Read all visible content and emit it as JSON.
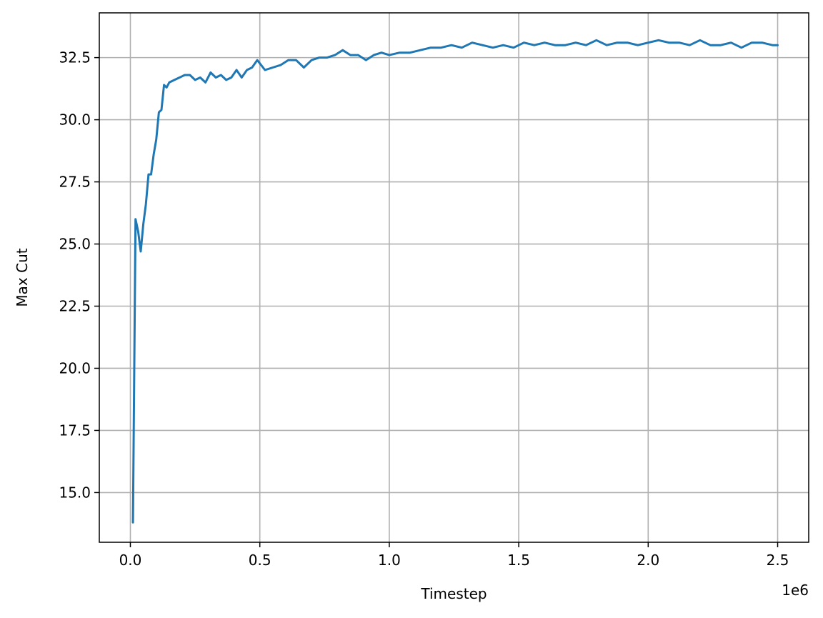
{
  "chart_data": {
    "type": "line",
    "title": "",
    "xlabel": "Timestep",
    "ylabel": "Max Cut",
    "x_offset_label": "1e6",
    "xlim": [
      -0.12,
      2.62
    ],
    "ylim": [
      13.0,
      34.3
    ],
    "xticks": [
      0.0,
      0.5,
      1.0,
      1.5,
      2.0,
      2.5
    ],
    "xtick_labels": [
      "0.0",
      "0.5",
      "1.0",
      "1.5",
      "2.0",
      "2.5"
    ],
    "yticks": [
      15.0,
      17.5,
      20.0,
      22.5,
      25.0,
      27.5,
      30.0,
      32.5
    ],
    "ytick_labels": [
      "15.0",
      "17.5",
      "20.0",
      "22.5",
      "25.0",
      "27.5",
      "30.0",
      "32.5"
    ],
    "grid": true,
    "line_color": "#1f77b4",
    "series": [
      {
        "x": [
          0.01,
          0.02,
          0.03,
          0.04,
          0.05,
          0.06,
          0.07,
          0.08,
          0.09,
          0.1,
          0.11,
          0.12,
          0.13,
          0.14,
          0.15,
          0.17,
          0.19,
          0.21,
          0.23,
          0.25,
          0.27,
          0.29,
          0.31,
          0.33,
          0.35,
          0.37,
          0.39,
          0.41,
          0.43,
          0.45,
          0.47,
          0.49,
          0.52,
          0.55,
          0.58,
          0.61,
          0.64,
          0.67,
          0.7,
          0.73,
          0.76,
          0.79,
          0.82,
          0.85,
          0.88,
          0.91,
          0.94,
          0.97,
          1.0,
          1.04,
          1.08,
          1.12,
          1.16,
          1.2,
          1.24,
          1.28,
          1.32,
          1.36,
          1.4,
          1.44,
          1.48,
          1.52,
          1.56,
          1.6,
          1.64,
          1.68,
          1.72,
          1.76,
          1.8,
          1.84,
          1.88,
          1.92,
          1.96,
          2.0,
          2.04,
          2.08,
          2.12,
          2.16,
          2.2,
          2.24,
          2.28,
          2.32,
          2.36,
          2.4,
          2.44,
          2.48,
          2.5
        ],
        "y": [
          13.8,
          26.0,
          25.5,
          24.7,
          25.8,
          26.6,
          27.8,
          27.8,
          28.6,
          29.2,
          30.3,
          30.4,
          31.4,
          31.3,
          31.5,
          31.6,
          31.7,
          31.8,
          31.8,
          31.6,
          31.7,
          31.5,
          31.9,
          31.7,
          31.8,
          31.6,
          31.7,
          32.0,
          31.7,
          32.0,
          32.1,
          32.4,
          32.0,
          32.1,
          32.2,
          32.4,
          32.4,
          32.1,
          32.4,
          32.5,
          32.5,
          32.6,
          32.8,
          32.6,
          32.6,
          32.4,
          32.6,
          32.7,
          32.6,
          32.7,
          32.7,
          32.8,
          32.9,
          32.9,
          33.0,
          32.9,
          33.1,
          33.0,
          32.9,
          33.0,
          32.9,
          33.1,
          33.0,
          33.1,
          33.0,
          33.0,
          33.1,
          33.0,
          33.2,
          33.0,
          33.1,
          33.1,
          33.0,
          33.1,
          33.2,
          33.1,
          33.1,
          33.0,
          33.2,
          33.0,
          33.0,
          33.1,
          32.9,
          33.1,
          33.1,
          33.0,
          33.0
        ]
      }
    ]
  }
}
